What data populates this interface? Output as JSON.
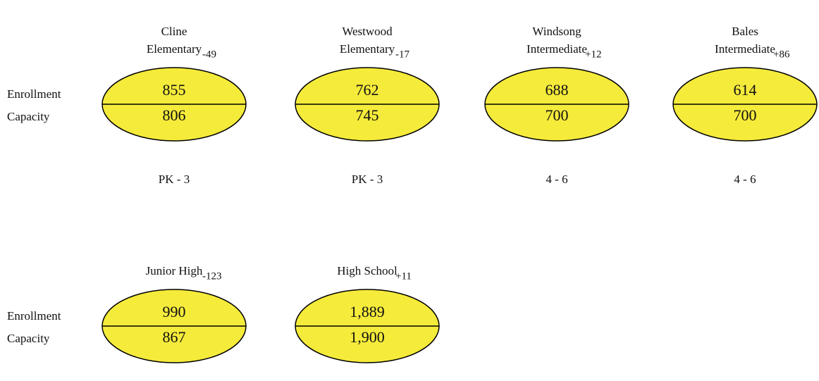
{
  "rows": [
    {
      "row_labels": {
        "enrollment": "Enrollment",
        "capacity": "Capacity"
      },
      "schools": [
        {
          "name": [
            "Cline",
            "Elementary"
          ],
          "difference": "-49",
          "enrollment": "855",
          "capacity": "806",
          "grades": "PK - 3"
        },
        {
          "name": [
            "Westwood",
            "Elementary"
          ],
          "difference": "-17",
          "enrollment": "762",
          "capacity": "745",
          "grades": "PK - 3"
        },
        {
          "name": [
            "Windsong",
            "Intermediate"
          ],
          "difference": "+12",
          "enrollment": "688",
          "capacity": "700",
          "grades": "4 - 6"
        },
        {
          "name": [
            "Bales",
            "Intermediate"
          ],
          "difference": "+86",
          "enrollment": "614",
          "capacity": "700",
          "grades": "4 - 6"
        }
      ]
    },
    {
      "row_labels": {
        "enrollment": "Enrollment",
        "capacity": "Capacity"
      },
      "schools": [
        {
          "name": [
            "Junior High"
          ],
          "difference": "-123",
          "enrollment": "990",
          "capacity": "867"
        },
        {
          "name": [
            "High School"
          ],
          "difference": "+11",
          "enrollment": "1,889",
          "capacity": "1,900"
        }
      ]
    }
  ]
}
